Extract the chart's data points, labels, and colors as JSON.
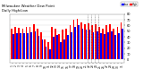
{
  "title": "Milwaukee Weather Dew Point",
  "subtitle": "Daily High/Low",
  "high_color": "#ff0000",
  "low_color": "#0000ff",
  "background_color": "#ffffff",
  "grid_color": "#aaaaaa",
  "ylim": [
    -5,
    80
  ],
  "yticks": [
    0,
    10,
    20,
    30,
    40,
    50,
    60,
    70,
    80
  ],
  "ytick_labels": [
    "0",
    "10",
    "20",
    "30",
    "40",
    "50",
    "60",
    "70",
    "80"
  ],
  "days": [
    1,
    2,
    3,
    4,
    5,
    6,
    7,
    8,
    9,
    10,
    11,
    12,
    13,
    14,
    15,
    16,
    17,
    18,
    19,
    20,
    21,
    22,
    23,
    24,
    25,
    26,
    27,
    28,
    29,
    30,
    31
  ],
  "highs": [
    55,
    57,
    56,
    55,
    57,
    57,
    62,
    55,
    48,
    35,
    30,
    58,
    55,
    45,
    52,
    55,
    60,
    70,
    72,
    65,
    62,
    63,
    60,
    62,
    58,
    55,
    60,
    62,
    55,
    58,
    65
  ],
  "lows": [
    45,
    46,
    47,
    46,
    47,
    48,
    50,
    42,
    35,
    22,
    18,
    40,
    44,
    30,
    35,
    44,
    48,
    58,
    60,
    55,
    52,
    52,
    48,
    50,
    47,
    45,
    48,
    50,
    44,
    47,
    55
  ],
  "dashed_vlines": [
    21,
    22,
    23,
    24
  ],
  "legend_labels": [
    "Low",
    "High"
  ]
}
